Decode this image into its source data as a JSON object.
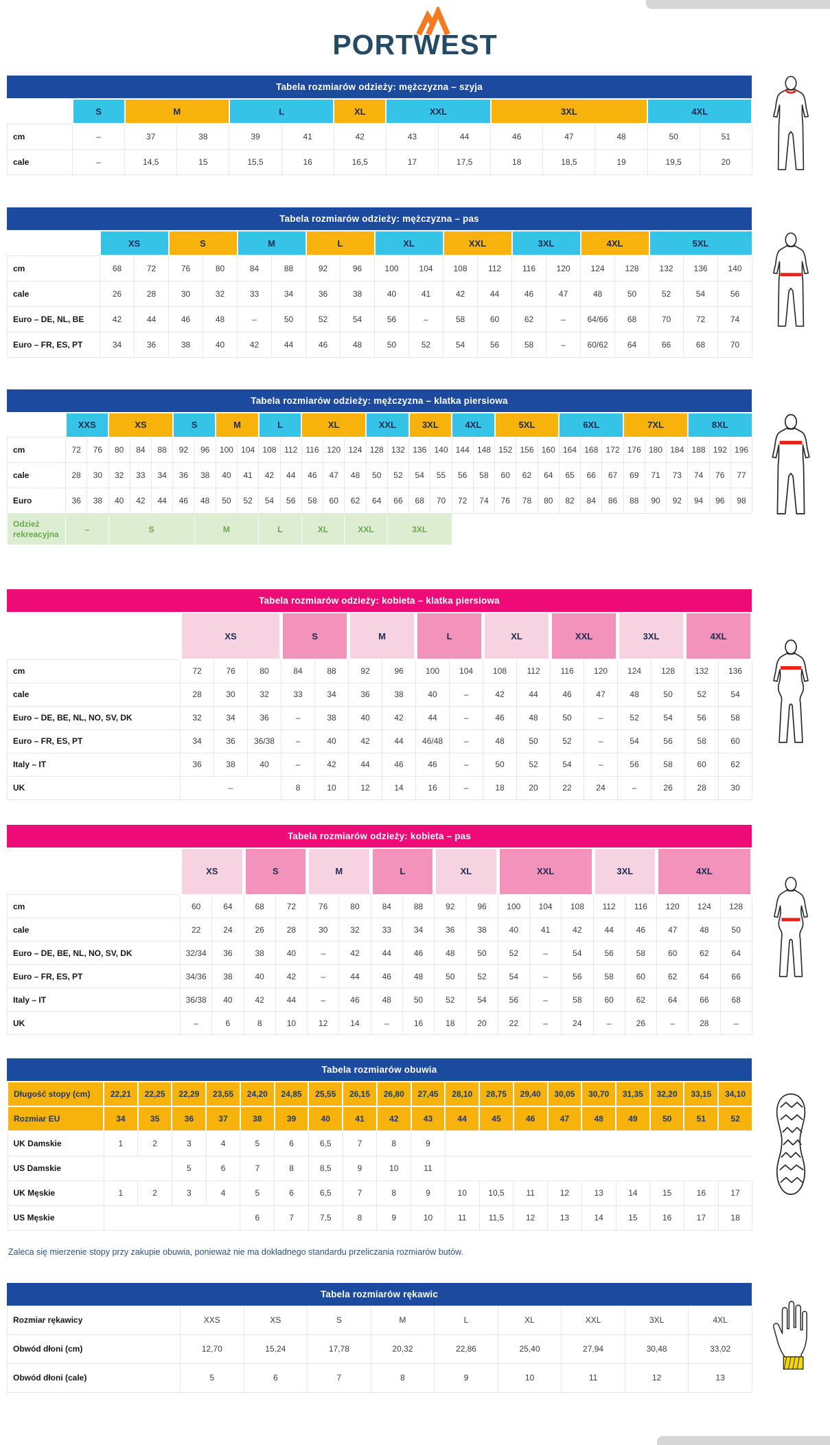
{
  "logo": {
    "text": "PORTWEST"
  },
  "palette": {
    "navy": "#1b4a9e",
    "magenta": "#ee0b77",
    "cyan": "#35c4e8",
    "yellow": "#f7b30b",
    "pink_light": "#f7d3e1",
    "pink_mid": "#f392ba",
    "green_bg": "#dcedd2",
    "green_text": "#6aa84e",
    "red": "#e8211d",
    "gold": "#f6d60a",
    "orange": "#f47a20",
    "logo_navy": "#254a63"
  },
  "shoe_note": "Zaleca się mierzenie stopy przy zakupie obuwia, ponieważ nie ma dokładnego standardu przeliczania rozmiarów butów.",
  "tables": [
    {
      "name": "men-neck",
      "title": "Tabela rozmiarów odzieży: mężczyzna – szyja",
      "title_bg": "navy",
      "theme": "blue",
      "figure": "male-neck",
      "cols": 13,
      "label_w": 95,
      "bands": [
        [
          "S",
          1,
          "cyan"
        ],
        [
          "M",
          2,
          "yellow"
        ],
        [
          "L",
          2,
          "cyan"
        ],
        [
          "XL",
          1,
          "yellow"
        ],
        [
          "XXL",
          2,
          "cyan"
        ],
        [
          "3XL",
          3,
          "yellow"
        ],
        [
          "4XL",
          2,
          "cyan"
        ]
      ],
      "rows": [
        {
          "label": "cm",
          "cells": [
            "–",
            "37",
            "38",
            "39",
            "41",
            "42",
            "43",
            "44",
            "46",
            "47",
            "48",
            "50",
            "51"
          ]
        },
        {
          "label": "cale",
          "cells": [
            "–",
            "14,5",
            "15",
            "15,5",
            "16",
            "16,5",
            "17",
            "17,5",
            "18",
            "18,5",
            "19",
            "19,5",
            "20"
          ]
        }
      ]
    },
    {
      "name": "men-waist",
      "title": "Tabela rozmiarów odzieży: mężczyzna – pas",
      "title_bg": "navy",
      "theme": "blue",
      "figure": "male-waist",
      "cols": 19,
      "label_w": 135,
      "bands": [
        [
          "XS",
          2,
          "cyan"
        ],
        [
          "S",
          2,
          "yellow"
        ],
        [
          "M",
          2,
          "cyan"
        ],
        [
          "L",
          2,
          "yellow"
        ],
        [
          "XL",
          2,
          "cyan"
        ],
        [
          "XXL",
          2,
          "yellow"
        ],
        [
          "3XL",
          2,
          "cyan"
        ],
        [
          "4XL",
          2,
          "yellow"
        ],
        [
          "5XL",
          3,
          "cyan"
        ]
      ],
      "rows": [
        {
          "label": "cm",
          "cells": [
            "68",
            "72",
            "76",
            "80",
            "84",
            "88",
            "92",
            "96",
            "100",
            "104",
            "108",
            "112",
            "116",
            "120",
            "124",
            "128",
            "132",
            "136",
            "140"
          ]
        },
        {
          "label": "cale",
          "cells": [
            "26",
            "28",
            "30",
            "32",
            "33",
            "34",
            "36",
            "38",
            "40",
            "41",
            "42",
            "44",
            "46",
            "47",
            "48",
            "50",
            "52",
            "54",
            "56"
          ]
        },
        {
          "label": "Euro – DE, NL, BE",
          "cells": [
            "42",
            "44",
            "46",
            "48",
            "–",
            "50",
            "52",
            "54",
            "56",
            "–",
            "58",
            "60",
            "62",
            "–",
            "64/66",
            "68",
            "70",
            "72",
            "74"
          ]
        },
        {
          "label": "Euro – FR, ES, PT",
          "cells": [
            "34",
            "36",
            "38",
            "40",
            "42",
            "44",
            "46",
            "48",
            "50",
            "52",
            "54",
            "56",
            "58",
            "–",
            "60/62",
            "64",
            "66",
            "68",
            "70"
          ]
        }
      ]
    },
    {
      "name": "men-chest",
      "title": "Tabela rozmiarów odzieży: mężczyzna – klatka piersiowa",
      "title_bg": "navy",
      "theme": "blue",
      "figure": "male-chest",
      "cols": 32,
      "label_w": 85,
      "bands": [
        [
          "XXS",
          2,
          "cyan"
        ],
        [
          "XS",
          3,
          "yellow"
        ],
        [
          "S",
          2,
          "cyan"
        ],
        [
          "M",
          2,
          "yellow"
        ],
        [
          "L",
          2,
          "cyan"
        ],
        [
          "XL",
          3,
          "yellow"
        ],
        [
          "XXL",
          2,
          "cyan"
        ],
        [
          "3XL",
          2,
          "yellow"
        ],
        [
          "4XL",
          2,
          "cyan"
        ],
        [
          "5XL",
          3,
          "yellow"
        ],
        [
          "6XL",
          3,
          "cyan"
        ],
        [
          "7XL",
          3,
          "yellow"
        ],
        [
          "8XL",
          3,
          "cyan"
        ]
      ],
      "rows": [
        {
          "label": "cm",
          "cells": [
            "72",
            "76",
            "80",
            "84",
            "88",
            "92",
            "96",
            "100",
            "104",
            "108",
            "112",
            "116",
            "120",
            "124",
            "128",
            "132",
            "136",
            "140",
            "144",
            "148",
            "152",
            "156",
            "160",
            "164",
            "168",
            "172",
            "176",
            "180",
            "184",
            "188",
            "192",
            "196"
          ]
        },
        {
          "label": "cale",
          "cells": [
            "28",
            "30",
            "32",
            "33",
            "34",
            "36",
            "38",
            "40",
            "41",
            "42",
            "44",
            "46",
            "47",
            "48",
            "50",
            "52",
            "54",
            "55",
            "56",
            "58",
            "60",
            "62",
            "64",
            "65",
            "66",
            "67",
            "69",
            "71",
            "73",
            "74",
            "76",
            "77"
          ]
        },
        {
          "label": "Euro",
          "cells": [
            "36",
            "38",
            "40",
            "42",
            "44",
            "46",
            "48",
            "50",
            "52",
            "54",
            "56",
            "58",
            "60",
            "62",
            "64",
            "66",
            "68",
            "70",
            "72",
            "74",
            "76",
            "78",
            "80",
            "82",
            "84",
            "86",
            "88",
            "90",
            "92",
            "94",
            "96",
            "98"
          ]
        },
        {
          "label": "Odzież rekreacyjna",
          "cls": "grow",
          "cells": [
            {
              "t": "–",
              "s": 2
            },
            {
              "t": "S",
              "s": 4
            },
            {
              "t": "M",
              "s": 3
            },
            {
              "t": "L",
              "s": 2
            },
            {
              "t": "XL",
              "s": 2
            },
            {
              "t": "XXL",
              "s": 2
            },
            {
              "t": "3XL",
              "s": 3
            },
            {
              "t": "",
              "s": 14,
              "cls": "empty"
            }
          ]
        }
      ]
    },
    {
      "name": "women-chest",
      "title": "Tabela rozmiarów odzieży: kobieta – klatka piersiowa",
      "title_bg": "magenta",
      "theme": "pink",
      "figure": "female-chest",
      "cols": 17,
      "label_w": 252,
      "bands": [
        [
          "XS",
          3,
          "pink_light"
        ],
        [
          "S",
          2,
          "pink_mid"
        ],
        [
          "M",
          2,
          "pink_light"
        ],
        [
          "L",
          2,
          "pink_mid"
        ],
        [
          "XL",
          2,
          "pink_light"
        ],
        [
          "XXL",
          2,
          "pink_mid"
        ],
        [
          "3XL",
          2,
          "pink_light"
        ],
        [
          "4XL",
          2,
          "pink_mid"
        ]
      ],
      "rows": [
        {
          "label": "cm",
          "cells": [
            "72",
            "76",
            "80",
            "84",
            "88",
            "92",
            "96",
            "100",
            "104",
            "108",
            "112",
            "116",
            "120",
            "124",
            "128",
            "132",
            "136"
          ]
        },
        {
          "label": "cale",
          "cells": [
            "28",
            "30",
            "32",
            "33",
            "34",
            "36",
            "38",
            "40",
            "–",
            "42",
            "44",
            "46",
            "47",
            "48",
            "50",
            "52",
            "54"
          ]
        },
        {
          "label": "Euro – DE, BE, NL, NO, SV, DK",
          "cells": [
            "32",
            "34",
            "36",
            "–",
            "38",
            "40",
            "42",
            "44",
            "–",
            "46",
            "48",
            "50",
            "–",
            "52",
            "54",
            "56",
            "58"
          ]
        },
        {
          "label": "Euro – FR, ES, PT",
          "cells": [
            "34",
            "36",
            "36/38",
            "–",
            "40",
            "42",
            "44",
            "46/48",
            "–",
            "48",
            "50",
            "52",
            "–",
            "54",
            "56",
            "58",
            "60"
          ]
        },
        {
          "label": "Italy – IT",
          "cells": [
            "36",
            "38",
            "40",
            "–",
            "42",
            "44",
            "46",
            "46",
            "–",
            "50",
            "52",
            "54",
            "–",
            "56",
            "58",
            "60",
            "62"
          ]
        },
        {
          "label": "UK",
          "cells": [
            {
              "t": "–",
              "s": 3
            },
            "8",
            "10",
            "12",
            "14",
            "16",
            "–",
            "18",
            "20",
            "22",
            "24",
            "–",
            "26",
            "28",
            "30"
          ]
        }
      ]
    },
    {
      "name": "women-waist",
      "title": "Tabela rozmiarów odzieży: kobieta – pas",
      "title_bg": "magenta",
      "theme": "pink",
      "figure": "female-waist",
      "cols": 18,
      "label_w": 252,
      "bands": [
        [
          "XS",
          2,
          "pink_light"
        ],
        [
          "S",
          2,
          "pink_mid"
        ],
        [
          "M",
          2,
          "pink_light"
        ],
        [
          "L",
          2,
          "pink_mid"
        ],
        [
          "XL",
          2,
          "pink_light"
        ],
        [
          "XXL",
          3,
          "pink_mid"
        ],
        [
          "3XL",
          2,
          "pink_light"
        ],
        [
          "4XL",
          3,
          "pink_mid"
        ]
      ],
      "rows": [
        {
          "label": "cm",
          "cells": [
            "60",
            "64",
            "68",
            "72",
            "76",
            "80",
            "84",
            "88",
            "92",
            "96",
            "100",
            "104",
            "108",
            "112",
            "116",
            "120",
            "124",
            "128"
          ]
        },
        {
          "label": "cale",
          "cells": [
            "22",
            "24",
            "26",
            "28",
            "30",
            "32",
            "33",
            "34",
            "36",
            "38",
            "40",
            "41",
            "42",
            "44",
            "46",
            "47",
            "48",
            "50"
          ]
        },
        {
          "label": "Euro – DE, BE, NL, NO, SV, DK",
          "cells": [
            "32/34",
            "36",
            "38",
            "40",
            "–",
            "42",
            "44",
            "46",
            "48",
            "50",
            "52",
            "–",
            "54",
            "56",
            "58",
            "60",
            "62",
            "64"
          ]
        },
        {
          "label": "Euro – FR, ES, PT",
          "cells": [
            "34/36",
            "38",
            "40",
            "42",
            "–",
            "44",
            "46",
            "48",
            "50",
            "52",
            "54",
            "–",
            "56",
            "58",
            "60",
            "62",
            "64",
            "66"
          ]
        },
        {
          "label": "Italy – IT",
          "cells": [
            "36/38",
            "40",
            "42",
            "44",
            "–",
            "46",
            "48",
            "50",
            "52",
            "54",
            "56",
            "–",
            "58",
            "60",
            "62",
            "64",
            "66",
            "68"
          ]
        },
        {
          "label": "UK",
          "cells": [
            "–",
            "6",
            "8",
            "10",
            "12",
            "14",
            "–",
            "16",
            "18",
            "20",
            "22",
            "–",
            "24",
            "–",
            "26",
            "–",
            "28",
            "–"
          ]
        }
      ]
    },
    {
      "name": "shoes",
      "title": "Tabela rozmiarów obuwia",
      "title_bg": "navy",
      "theme": "shoe",
      "figure": "shoe-sole",
      "cols": 19,
      "label_w": 140,
      "rows": [
        {
          "label": "Długość stopy (cm)",
          "cls": "yrow",
          "cells": [
            "22,21",
            "22,25",
            "22,29",
            "23,55",
            "24,20",
            "24,85",
            "25,55",
            "26,15",
            "26,80",
            "27,45",
            "28,10",
            "28,75",
            "29,40",
            "30,05",
            "30,70",
            "31,35",
            "32,20",
            "33,15",
            "34,10"
          ]
        },
        {
          "label": "Rozmiar EU",
          "cls": "yrow",
          "cells": [
            "34",
            "35",
            "36",
            "37",
            "38",
            "39",
            "40",
            "41",
            "42",
            "43",
            "44",
            "45",
            "46",
            "47",
            "48",
            "49",
            "50",
            "51",
            "52"
          ]
        },
        {
          "label": "UK Damskie",
          "cells": [
            "1",
            "2",
            "3",
            "4",
            "5",
            "6",
            "6,5",
            "7",
            "8",
            "9",
            {
              "t": "",
              "s": 9,
              "cls": "empty"
            }
          ]
        },
        {
          "label": "US Damskie",
          "cells": [
            {
              "t": "",
              "s": 2,
              "cls": "empty"
            },
            "5",
            "6",
            "7",
            "8",
            "8,5",
            "9",
            "10",
            "11",
            {
              "t": "",
              "s": 9,
              "cls": "empty"
            }
          ]
        },
        {
          "label": "UK Męskie",
          "cells": [
            "1",
            "2",
            "3",
            "4",
            "5",
            "6",
            "6,5",
            "7",
            "8",
            "9",
            "10",
            "10,5",
            "11",
            "12",
            "13",
            "14",
            "15",
            "16",
            "17"
          ]
        },
        {
          "label": "US Męskie",
          "cells": [
            {
              "t": "",
              "s": 4,
              "cls": "empty"
            },
            "6",
            "7",
            "7,5",
            "8",
            "9",
            "10",
            "11",
            "11,5",
            "12",
            "13",
            "14",
            "15",
            "16",
            "17",
            "18"
          ]
        }
      ]
    },
    {
      "name": "gloves",
      "title": "Tabela rozmiarów rękawic",
      "title_bg": "navy",
      "theme": "glove",
      "figure": "glove-hand",
      "cols": 9,
      "label_w": 252,
      "rows": [
        {
          "label": "Rozmiar rękawicy",
          "cells": [
            "XXS",
            "XS",
            "S",
            "M",
            "L",
            "XL",
            "XXL",
            "3XL",
            "4XL"
          ]
        },
        {
          "label": "Obwód dłoni (cm)",
          "cells": [
            "12,70",
            "15,24",
            "17,78",
            "20,32",
            "22,86",
            "25,40",
            "27,94",
            "30,48",
            "33,02"
          ]
        },
        {
          "label": "Obwód dłoni (cale)",
          "cells": [
            "5",
            "6",
            "7",
            "8",
            "9",
            "10",
            "11",
            "12",
            "13"
          ]
        }
      ]
    }
  ]
}
